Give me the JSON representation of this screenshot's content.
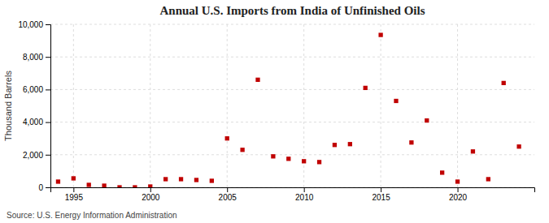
{
  "chart_data": {
    "type": "scatter",
    "title": "Annual U.S. Imports from India of Unfinished Oils",
    "y_label": "Thousand Barrels",
    "annotations": [
      "Source: U.S. Energy Information Administration"
    ],
    "x": [
      1994,
      1995,
      1996,
      1997,
      1998,
      1999,
      2000,
      2001,
      2002,
      2003,
      2004,
      2005,
      2006,
      2007,
      2008,
      2009,
      2010,
      2011,
      2012,
      2013,
      2014,
      2015,
      2016,
      2017,
      2018,
      2019,
      2020,
      2021,
      2022,
      2023,
      2024
    ],
    "values": [
      350,
      550,
      150,
      100,
      0,
      0,
      50,
      500,
      500,
      450,
      400,
      3000,
      2300,
      6600,
      1900,
      1750,
      1600,
      1550,
      2600,
      2650,
      6100,
      9350,
      5300,
      2750,
      4100,
      900,
      350,
      2200,
      500,
      6400,
      2500
    ],
    "color": "#c00000",
    "marker": "square",
    "xlim": [
      1993.5,
      2025
    ],
    "xticks": [
      1995,
      2000,
      2005,
      2010,
      2015,
      2020
    ],
    "ylim": [
      0,
      10000
    ],
    "yticks": [
      0,
      {
        "value": 2000,
        "label": "2,000"
      },
      {
        "value": 4000,
        "label": "4,000"
      },
      {
        "value": 6000,
        "label": "6,000"
      },
      {
        "value": 8000,
        "label": "8,000"
      },
      {
        "value": 10000,
        "label": "10,000"
      }
    ],
    "grid": true
  }
}
